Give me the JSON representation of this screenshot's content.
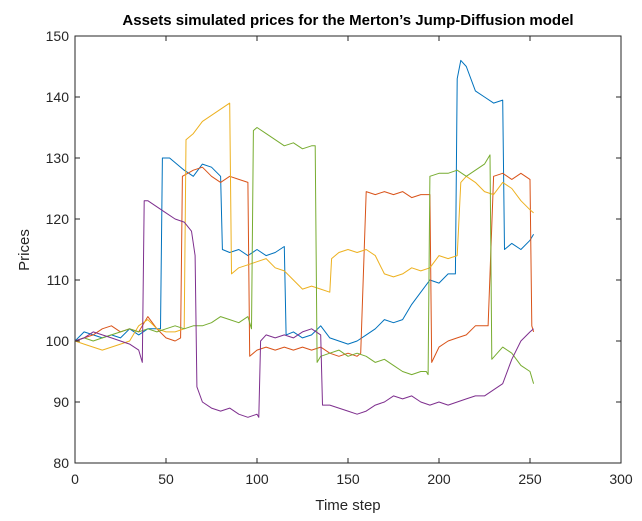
{
  "chart_data": {
    "type": "line",
    "title": "Assets simulated prices for the Merton’s Jump-Diffusion model",
    "xlabel": "Time step",
    "ylabel": "Prices",
    "xlim": [
      0,
      300
    ],
    "ylim": [
      80,
      150
    ],
    "xticks": [
      0,
      50,
      100,
      150,
      200,
      250,
      300
    ],
    "yticks": [
      80,
      90,
      100,
      110,
      120,
      130,
      140,
      150
    ],
    "grid": false,
    "legend": "none",
    "series": [
      {
        "color": "#0072BD",
        "x": [
          0,
          5,
          10,
          15,
          20,
          25,
          30,
          35,
          40,
          45,
          47,
          48,
          52,
          56,
          60,
          65,
          70,
          75,
          80,
          81,
          85,
          90,
          95,
          100,
          105,
          110,
          115,
          116,
          120,
          125,
          130,
          135,
          140,
          145,
          150,
          155,
          160,
          165,
          170,
          175,
          180,
          185,
          190,
          195,
          200,
          205,
          209,
          210,
          212,
          215,
          220,
          225,
          230,
          235,
          236,
          240,
          245,
          250,
          252
        ],
        "values": [
          100,
          101.5,
          101,
          100.5,
          101,
          100.5,
          102,
          101,
          102,
          102,
          102,
          130,
          130,
          129,
          128,
          127,
          129,
          128.5,
          127,
          115,
          114.5,
          115,
          114,
          115,
          114,
          114.5,
          115.5,
          101,
          101.5,
          100.5,
          101,
          102.5,
          100.5,
          100,
          99.5,
          100,
          101,
          102,
          103.5,
          103,
          103.5,
          106,
          108,
          110,
          109.5,
          111,
          111,
          143,
          146,
          145,
          141,
          140,
          139,
          139.5,
          115,
          116,
          115,
          116.5,
          117.5
        ]
      },
      {
        "color": "#D95319",
        "x": [
          0,
          5,
          10,
          15,
          20,
          25,
          30,
          35,
          40,
          45,
          50,
          55,
          58,
          59,
          65,
          70,
          75,
          80,
          85,
          90,
          95,
          96,
          100,
          105,
          110,
          115,
          120,
          125,
          130,
          135,
          140,
          145,
          150,
          155,
          157,
          160,
          165,
          170,
          175,
          180,
          185,
          190,
          195,
          196,
          200,
          205,
          210,
          215,
          220,
          225,
          227,
          230,
          235,
          240,
          245,
          250,
          251,
          252
        ],
        "values": [
          100,
          100.5,
          101,
          102,
          102.5,
          101.5,
          102,
          101.5,
          104,
          102,
          100.5,
          100,
          100.5,
          127,
          128,
          128.5,
          127,
          126,
          127,
          126.5,
          126,
          97.5,
          98.5,
          99,
          98.5,
          99,
          98.5,
          99,
          98.5,
          99,
          98,
          97.5,
          98,
          97.5,
          98,
          124.5,
          124,
          124.5,
          124,
          124.5,
          123.5,
          124,
          124,
          96.5,
          99,
          100,
          100.5,
          101,
          102.5,
          102.5,
          102.5,
          127,
          127.5,
          126.5,
          127.5,
          126.5,
          102.5,
          101.5
        ]
      },
      {
        "color": "#EDB120",
        "x": [
          0,
          5,
          10,
          15,
          20,
          25,
          30,
          35,
          40,
          45,
          50,
          55,
          60,
          61,
          65,
          70,
          75,
          80,
          85,
          86,
          90,
          95,
          100,
          105,
          110,
          115,
          120,
          125,
          130,
          135,
          140,
          141,
          145,
          150,
          155,
          160,
          165,
          170,
          175,
          180,
          185,
          190,
          195,
          200,
          205,
          210,
          212,
          215,
          220,
          225,
          230,
          235,
          240,
          245,
          250,
          252
        ],
        "values": [
          100,
          99.5,
          99,
          98.5,
          99,
          99.5,
          100,
          102.5,
          103.5,
          102,
          101.5,
          101.5,
          102,
          133,
          134,
          136,
          137,
          138,
          139,
          111,
          112,
          112.5,
          113,
          113.5,
          112,
          111.5,
          110,
          108.5,
          109,
          108.5,
          108,
          113.5,
          114.5,
          115,
          114.5,
          115,
          114,
          111,
          110.5,
          111,
          112,
          111.5,
          112,
          114,
          113.5,
          114,
          126,
          127,
          126,
          124.5,
          124,
          126,
          125,
          123,
          121.5,
          121
        ]
      },
      {
        "color": "#77AC30",
        "x": [
          0,
          5,
          10,
          15,
          20,
          25,
          30,
          35,
          40,
          45,
          50,
          55,
          60,
          65,
          70,
          75,
          80,
          85,
          90,
          95,
          97,
          98,
          100,
          105,
          110,
          115,
          120,
          125,
          130,
          132,
          133,
          135,
          140,
          145,
          150,
          155,
          160,
          165,
          170,
          175,
          180,
          185,
          190,
          193,
          194,
          195,
          200,
          205,
          210,
          215,
          220,
          225,
          228,
          229,
          235,
          240,
          245,
          250,
          252
        ],
        "values": [
          100,
          100.5,
          100,
          100.5,
          101,
          101.5,
          102,
          101.5,
          102,
          101.5,
          102,
          102.5,
          102,
          102.5,
          102.5,
          103,
          104,
          103.5,
          103,
          104,
          102,
          134.5,
          135,
          134,
          133,
          132,
          132.5,
          131.5,
          132,
          132,
          96.5,
          97.5,
          98,
          98.5,
          97.5,
          98,
          97.5,
          96.5,
          97,
          96,
          95,
          94.5,
          95,
          95,
          94.5,
          127,
          127.5,
          127.5,
          128,
          127,
          128,
          129,
          130.5,
          97,
          99,
          98,
          96,
          95,
          93
        ]
      },
      {
        "color": "#7E2F8E",
        "x": [
          0,
          5,
          10,
          15,
          20,
          25,
          30,
          35,
          37,
          38,
          40,
          45,
          50,
          55,
          60,
          64,
          66,
          67,
          70,
          75,
          80,
          85,
          90,
          95,
          100,
          101,
          102,
          105,
          110,
          115,
          120,
          125,
          130,
          135,
          136,
          140,
          145,
          150,
          155,
          160,
          165,
          170,
          175,
          180,
          185,
          190,
          195,
          200,
          205,
          210,
          215,
          220,
          225,
          230,
          235,
          240,
          245,
          250,
          252
        ],
        "values": [
          100,
          100.5,
          101.5,
          101,
          100.5,
          100,
          99.5,
          98.5,
          96.5,
          123,
          123,
          122,
          121,
          120,
          119.5,
          118,
          114,
          92.5,
          90,
          89,
          88.5,
          89,
          88,
          87.5,
          88,
          87.5,
          100,
          101,
          100.5,
          101,
          100.5,
          101.5,
          102,
          101,
          89.5,
          89.5,
          89,
          88.5,
          88,
          88.5,
          89.5,
          90,
          91,
          90.5,
          91,
          90,
          89.5,
          90,
          89.5,
          90,
          90.5,
          91,
          91,
          92,
          93,
          97,
          100,
          101.5,
          102
        ]
      }
    ]
  }
}
